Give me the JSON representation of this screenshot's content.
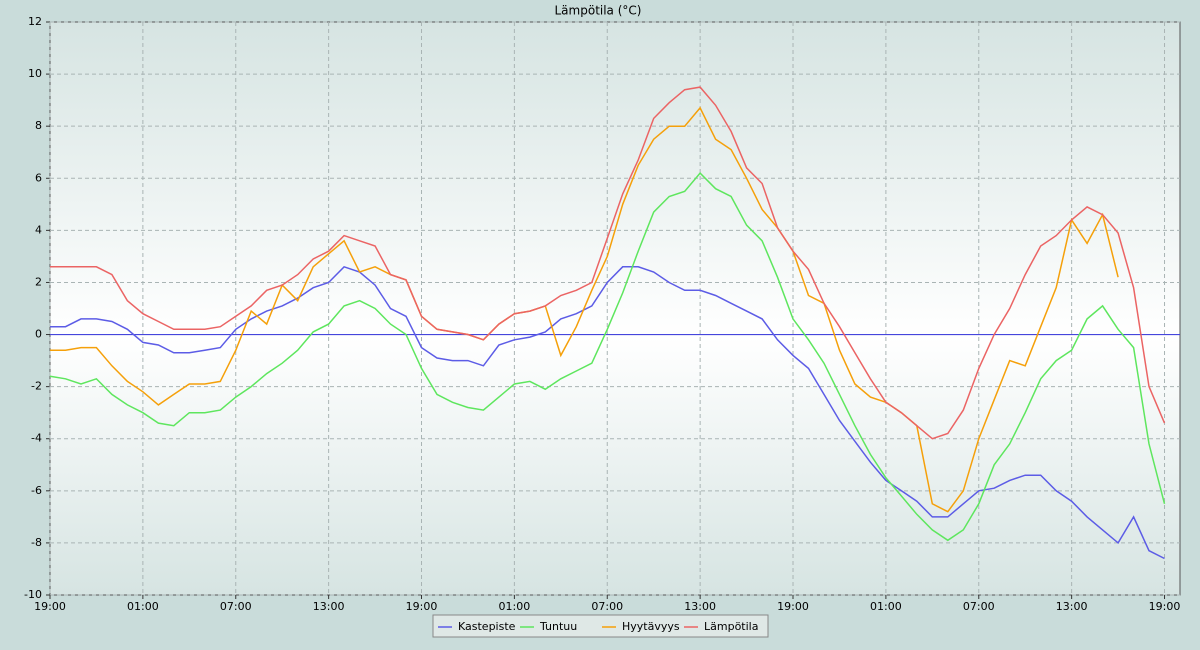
{
  "chart_data": {
    "type": "line",
    "title": "Lämpötila (°C)",
    "x": [
      0,
      1,
      2,
      3,
      4,
      5,
      6,
      7,
      8,
      9,
      10,
      11,
      12,
      13,
      14,
      15,
      16,
      17,
      18,
      19,
      20,
      21,
      22,
      23,
      24,
      25,
      26,
      27,
      28,
      29,
      30,
      31,
      32,
      33,
      34,
      35,
      36,
      37,
      38,
      39,
      40,
      41,
      42,
      43,
      44,
      45,
      46,
      47,
      48,
      49,
      50,
      51,
      52,
      53,
      54,
      55,
      56,
      57,
      58,
      59,
      60,
      61,
      62,
      63,
      64,
      65,
      66,
      67,
      68,
      69,
      70,
      71,
      72
    ],
    "series": [
      {
        "name": "Kastepiste",
        "color": "#5c5ce6",
        "values": [
          0.3,
          0.3,
          0.6,
          0.6,
          0.5,
          0.2,
          -0.3,
          -0.4,
          -0.7,
          -0.7,
          -0.6,
          -0.5,
          0.2,
          0.6,
          0.9,
          1.1,
          1.4,
          1.8,
          2.0,
          2.6,
          2.4,
          1.9,
          1.0,
          0.7,
          -0.5,
          -0.9,
          -1.0,
          -1.0,
          -1.2,
          -0.4,
          -0.2,
          -0.1,
          0.1,
          0.6,
          0.8,
          1.1,
          2.0,
          2.6,
          2.6,
          2.4,
          2.0,
          1.7,
          1.7,
          1.5,
          1.2,
          0.9,
          0.6,
          -0.2,
          -0.8,
          -1.3,
          -2.3,
          -3.3,
          -4.1,
          -4.9,
          -5.6,
          -6.0,
          -6.4,
          -7.0,
          -7.0,
          -6.5,
          -6.0,
          -5.9,
          -5.6,
          -5.4,
          -5.4,
          -6.0,
          -6.4,
          -7.0,
          -7.5,
          -8.0,
          -7.0,
          -8.3,
          -8.6
        ]
      },
      {
        "name": "Tuntuu",
        "color": "#5ee65e",
        "values": [
          -1.6,
          -1.7,
          -1.9,
          -1.7,
          -2.3,
          -2.7,
          -3.0,
          -3.4,
          -3.5,
          -3.0,
          -3.0,
          -2.9,
          -2.4,
          -2.0,
          -1.5,
          -1.1,
          -0.6,
          0.1,
          0.4,
          1.1,
          1.3,
          1.0,
          0.4,
          0.0,
          -1.3,
          -2.3,
          -2.6,
          -2.8,
          -2.9,
          -2.4,
          -1.9,
          -1.8,
          -2.1,
          -1.7,
          -1.4,
          -1.1,
          0.2,
          1.6,
          3.2,
          4.7,
          5.3,
          5.5,
          6.2,
          5.6,
          5.3,
          4.2,
          3.6,
          2.2,
          0.6,
          -0.2,
          -1.1,
          -2.3,
          -3.5,
          -4.6,
          -5.5,
          -6.2,
          -6.9,
          -7.5,
          -7.9,
          -7.5,
          -6.5,
          -5.0,
          -4.2,
          -3.0,
          -1.7,
          -1.0,
          -0.6,
          0.6,
          1.1,
          0.2,
          -0.5,
          -4.2,
          -6.5
        ]
      },
      {
        "name": "Hyytävyys",
        "color": "#f5a00a",
        "values": [
          -0.6,
          -0.6,
          -0.5,
          -0.5,
          -1.2,
          -1.8,
          -2.2,
          -2.7,
          -2.3,
          -1.9,
          -1.9,
          -1.8,
          -0.6,
          0.9,
          0.4,
          1.9,
          1.3,
          2.6,
          3.1,
          3.6,
          2.4,
          2.6,
          2.3,
          2.1,
          0.7,
          0.2,
          0.1,
          0.0,
          -0.2,
          0.4,
          0.8,
          0.9,
          1.1,
          -0.8,
          0.3,
          1.7,
          3.0,
          5.0,
          6.5,
          7.5,
          8.0,
          8.0,
          8.7,
          7.5,
          7.1,
          6.0,
          4.8,
          4.1,
          3.2,
          1.5,
          1.2,
          -0.6,
          -1.9,
          -2.4,
          -2.6,
          -3.0,
          -3.5,
          -6.5,
          -6.8,
          -6.0,
          -4.0,
          -2.5,
          -1.0,
          -1.2,
          0.3,
          1.8,
          4.4,
          3.5,
          4.6,
          2.2,
          null,
          null,
          null
        ]
      },
      {
        "name": "Lämpötila",
        "color": "#eb6464",
        "values": [
          2.6,
          2.6,
          2.6,
          2.6,
          2.3,
          1.3,
          0.8,
          0.5,
          0.2,
          0.2,
          0.2,
          0.3,
          0.7,
          1.1,
          1.7,
          1.9,
          2.3,
          2.9,
          3.2,
          3.8,
          3.6,
          3.4,
          2.3,
          2.1,
          0.7,
          0.2,
          0.1,
          0.0,
          -0.2,
          0.4,
          0.8,
          0.9,
          1.1,
          1.5,
          1.7,
          2.0,
          3.7,
          5.4,
          6.7,
          8.3,
          8.9,
          9.4,
          9.5,
          8.8,
          7.8,
          6.4,
          5.8,
          4.1,
          3.2,
          2.5,
          1.2,
          0.3,
          -0.7,
          -1.7,
          -2.6,
          -3.0,
          -3.5,
          -4.0,
          -3.8,
          -2.9,
          -1.3,
          0.0,
          1.0,
          2.3,
          3.4,
          3.8,
          4.4,
          4.9,
          4.6,
          3.9,
          1.8,
          -2.0,
          -3.4
        ]
      }
    ],
    "xlim": [
      0,
      73
    ],
    "xticks": [
      {
        "value": 0,
        "label": "19:00"
      },
      {
        "value": 6,
        "label": "01:00"
      },
      {
        "value": 12,
        "label": "07:00"
      },
      {
        "value": 18,
        "label": "13:00"
      },
      {
        "value": 24,
        "label": "19:00"
      },
      {
        "value": 30,
        "label": "01:00"
      },
      {
        "value": 36,
        "label": "07:00"
      },
      {
        "value": 42,
        "label": "13:00"
      },
      {
        "value": 48,
        "label": "19:00"
      },
      {
        "value": 54,
        "label": "01:00"
      },
      {
        "value": 60,
        "label": "07:00"
      },
      {
        "value": 66,
        "label": "13:00"
      },
      {
        "value": 72,
        "label": "19:00"
      }
    ],
    "ylim": [
      -10,
      12
    ],
    "yticks": [
      -10,
      -8,
      -6,
      -4,
      -2,
      0,
      2,
      4,
      6,
      8,
      10,
      12
    ],
    "zero_line_color": "#4646dc",
    "grid": true
  }
}
